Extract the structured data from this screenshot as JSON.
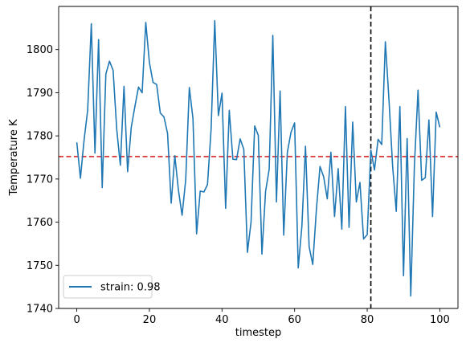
{
  "chart_data": {
    "type": "line",
    "xlabel": "timestep",
    "ylabel": "Temperature K",
    "xlim": [
      -5,
      105
    ],
    "ylim": [
      1740,
      1810
    ],
    "xticks": [
      0,
      20,
      40,
      60,
      80,
      100
    ],
    "yticks": [
      1740,
      1750,
      1760,
      1770,
      1780,
      1790,
      1800
    ],
    "grid": false,
    "legend_placement": "lower-left",
    "series": [
      {
        "name": "strain: 0.98",
        "color": "#1f77b4",
        "x": [
          0,
          1,
          2,
          3,
          4,
          5,
          6,
          7,
          8,
          9,
          10,
          11,
          12,
          13,
          14,
          15,
          16,
          17,
          18,
          19,
          20,
          21,
          22,
          23,
          24,
          25,
          26,
          27,
          28,
          29,
          30,
          31,
          32,
          33,
          34,
          35,
          36,
          37,
          38,
          39,
          40,
          41,
          42,
          43,
          44,
          45,
          46,
          47,
          48,
          49,
          50,
          51,
          52,
          53,
          54,
          55,
          56,
          57,
          58,
          59,
          60,
          61,
          62,
          63,
          64,
          65,
          66,
          67,
          68,
          69,
          70,
          71,
          72,
          73,
          74,
          75,
          76,
          77,
          78,
          79,
          80,
          81,
          82,
          83,
          84,
          85,
          86,
          87,
          88,
          89,
          90,
          91,
          92,
          93,
          94,
          95,
          96,
          97,
          98,
          99,
          100
        ],
        "y": [
          1778.5,
          1770.2,
          1779,
          1786,
          1806,
          1776,
          1802.3,
          1768,
          1794.3,
          1797.3,
          1795.2,
          1781.5,
          1773.2,
          1791.5,
          1771.7,
          1782,
          1786.8,
          1791.3,
          1790,
          1806.3,
          1797,
          1792.4,
          1791.9,
          1785.3,
          1784.4,
          1780.6,
          1764.4,
          1775.4,
          1767.4,
          1761.6,
          1769.8,
          1791.2,
          1784,
          1757.3,
          1767.2,
          1767,
          1768.7,
          1781.6,
          1806.7,
          1784.7,
          1789.9,
          1763.2,
          1785.9,
          1774.6,
          1774.5,
          1779.3,
          1776.9,
          1753,
          1760,
          1782.3,
          1780.1,
          1752.6,
          1767.1,
          1772.3,
          1803.3,
          1764.7,
          1790.4,
          1757,
          1776.2,
          1780.8,
          1783,
          1749.4,
          1759,
          1777.6,
          1754.3,
          1750.2,
          1762.9,
          1772.9,
          1770.5,
          1765.4,
          1776.2,
          1761.3,
          1772.4,
          1758.4,
          1786.8,
          1758.8,
          1783.2,
          1764.7,
          1769.2,
          1756.1,
          1757.1,
          1776.7,
          1772.1,
          1779.2,
          1778,
          1801.8,
          1788.3,
          1773,
          1762.5,
          1786.8,
          1747.6,
          1779.4,
          1742.9,
          1773.1,
          1790.6,
          1769.7,
          1770.3,
          1783.7,
          1761.3,
          1785.5,
          1782
        ]
      }
    ],
    "reference_lines": [
      {
        "orientation": "horizontal",
        "value": 1775.2,
        "color": "#d62728",
        "style": "dashed"
      },
      {
        "orientation": "vertical",
        "value": 81,
        "color": "#000000",
        "style": "dashed"
      }
    ]
  }
}
